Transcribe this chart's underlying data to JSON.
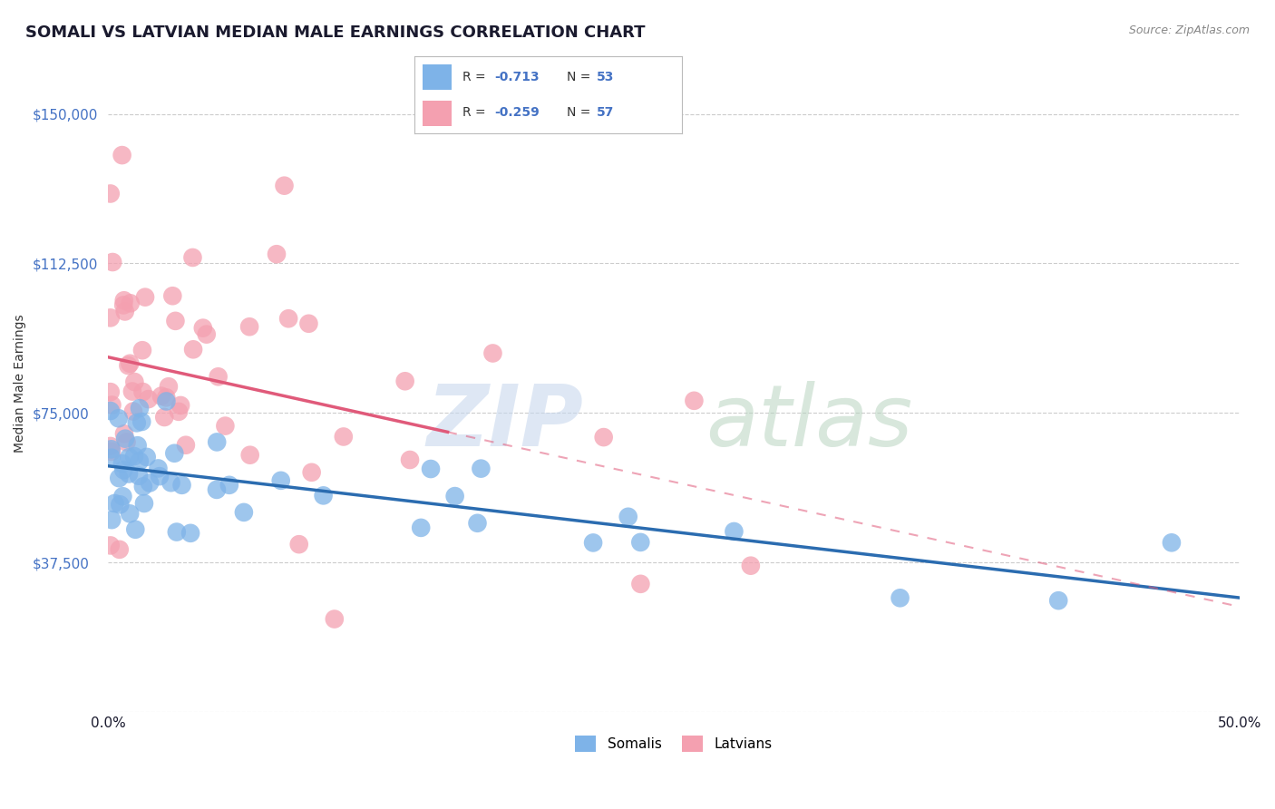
{
  "title": "SOMALI VS LATVIAN MEDIAN MALE EARNINGS CORRELATION CHART",
  "source": "Source: ZipAtlas.com",
  "ylabel": "Median Male Earnings",
  "yticks": [
    0,
    37500,
    75000,
    112500,
    150000
  ],
  "xlim": [
    0.0,
    0.5
  ],
  "ylim": [
    0,
    165000
  ],
  "somali_color": "#7eb3e8",
  "latvian_color": "#f4a0b0",
  "somali_line_color": "#2b6cb0",
  "latvian_line_color": "#e05a7a",
  "background_color": "#ffffff",
  "grid_color": "#cccccc",
  "tick_color": "#4472c4",
  "title_fontsize": 13,
  "r_somali": "-0.713",
  "n_somali": "53",
  "r_latvian": "-0.259",
  "n_latvian": "57",
  "legend_bottom_1": "Somalis",
  "legend_bottom_2": "Latvians"
}
